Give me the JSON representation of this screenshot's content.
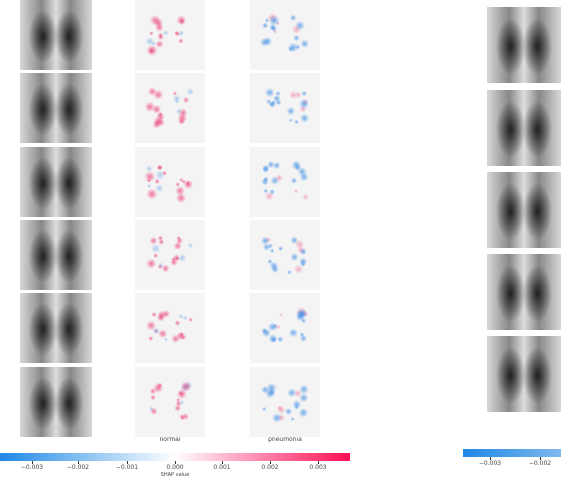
{
  "labels": [
    "normal",
    "pneumonia"
  ],
  "colorbar": {
    "label": "SHAP value",
    "ticks": [
      "−0.003",
      "−0.002",
      "−0.001",
      "0.000",
      "0.001",
      "0.002",
      "0.003"
    ]
  },
  "side_colorbar": {
    "ticks": [
      "−0.003",
      "−0.002"
    ]
  }
}
